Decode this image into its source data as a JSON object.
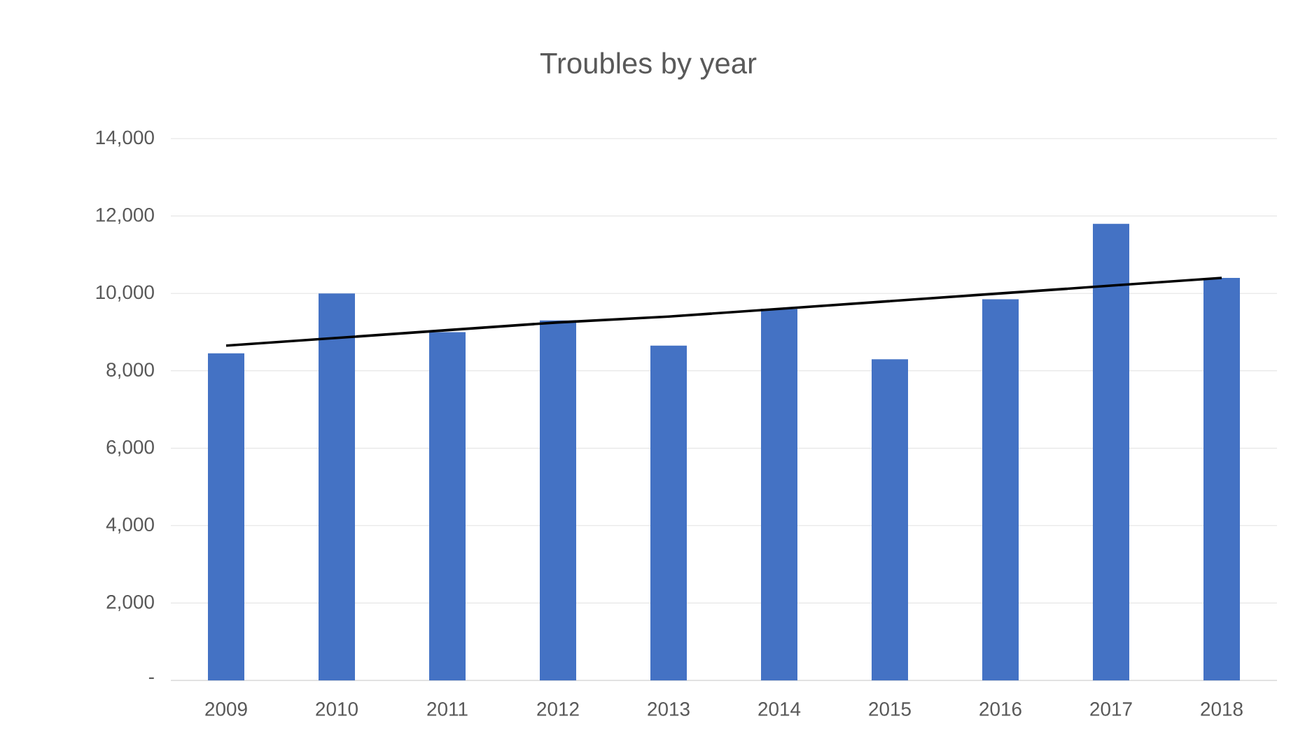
{
  "chart_data": {
    "type": "bar",
    "title": "Troubles by year",
    "categories": [
      "2009",
      "2010",
      "2011",
      "2012",
      "2013",
      "2014",
      "2015",
      "2016",
      "2017",
      "2018"
    ],
    "series": [
      {
        "color": "#4472c4",
        "values": [
          8450,
          10000,
          9000,
          9300,
          8650,
          9600,
          8300,
          9850,
          11800,
          10400
        ]
      },
      {
        "type": "line",
        "color": "#000000",
        "values": [
          8650,
          8850,
          9050,
          9250,
          9400,
          9600,
          9800,
          10000,
          10200,
          10400
        ]
      }
    ],
    "ylim": [
      0,
      14000
    ],
    "yticks": [
      {
        "value": 0,
        "label": "-"
      },
      {
        "value": 2000,
        "label": "2,000"
      },
      {
        "value": 4000,
        "label": "4,000"
      },
      {
        "value": 6000,
        "label": "6,000"
      },
      {
        "value": 8000,
        "label": "8,000"
      },
      {
        "value": 10000,
        "label": "10,000"
      },
      {
        "value": 12000,
        "label": "12,000"
      },
      {
        "value": 14000,
        "label": "14,000"
      }
    ],
    "grid": "y"
  }
}
